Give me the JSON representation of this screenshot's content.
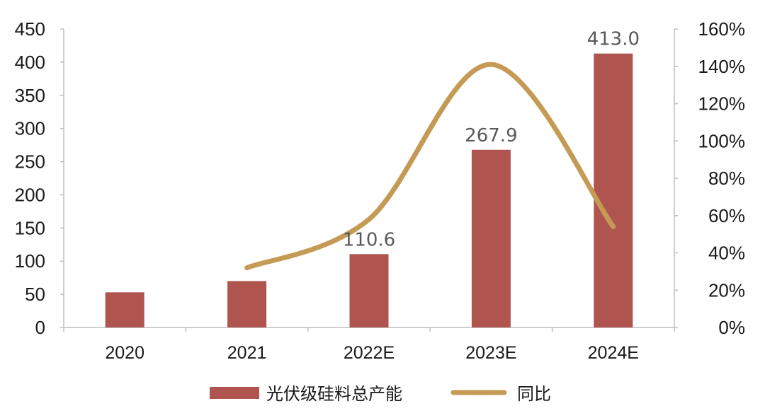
{
  "chart_data": {
    "type": "bar",
    "categories": [
      "2020",
      "2021",
      "2022E",
      "2023E",
      "2024E"
    ],
    "series": [
      {
        "name": "光伏级硅料总产能",
        "type": "bar",
        "axis": "left",
        "color": "#B0544F",
        "values": [
          53,
          70,
          110.6,
          267.9,
          413.0
        ],
        "data_labels": [
          "",
          "",
          "110.6",
          "267.9",
          "413.0"
        ]
      },
      {
        "name": "同比",
        "type": "line",
        "smooth": true,
        "axis": "right",
        "color": "#C49A55",
        "values": [
          null,
          0.32,
          0.58,
          1.41,
          0.54
        ]
      }
    ],
    "y_left": {
      "min": 0,
      "max": 450,
      "ticks": [
        "0",
        "50",
        "100",
        "150",
        "200",
        "250",
        "300",
        "350",
        "400",
        "450"
      ]
    },
    "y_right": {
      "min": 0,
      "max": 1.6,
      "ticks": [
        "0%",
        "20%",
        "40%",
        "60%",
        "80%",
        "100%",
        "120%",
        "140%",
        "160%"
      ]
    },
    "grid": false,
    "legend_position": "bottom"
  }
}
